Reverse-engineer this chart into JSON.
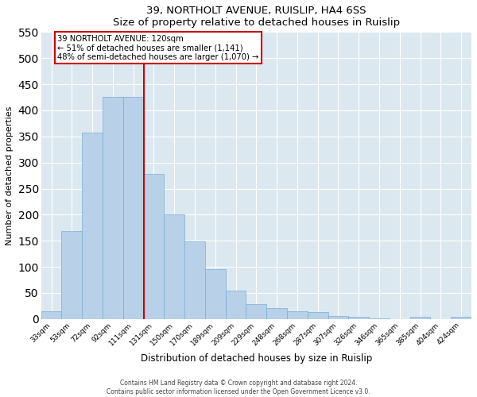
{
  "title": "39, NORTHOLT AVENUE, RUISLIP, HA4 6SS",
  "subtitle": "Size of property relative to detached houses in Ruislip",
  "xlabel": "Distribution of detached houses by size in Ruislip",
  "ylabel": "Number of detached properties",
  "categories": [
    "33sqm",
    "53sqm",
    "72sqm",
    "92sqm",
    "111sqm",
    "131sqm",
    "150sqm",
    "170sqm",
    "189sqm",
    "209sqm",
    "229sqm",
    "248sqm",
    "268sqm",
    "287sqm",
    "307sqm",
    "326sqm",
    "346sqm",
    "365sqm",
    "385sqm",
    "404sqm",
    "424sqm"
  ],
  "values": [
    15,
    168,
    357,
    425,
    425,
    278,
    200,
    149,
    96,
    55,
    28,
    21,
    15,
    14,
    6,
    5,
    1,
    0,
    5,
    0,
    5
  ],
  "bar_color": "#b8d0e8",
  "bar_edge_color": "#7aafd4",
  "vline_color": "#cc0000",
  "annotation_text": "39 NORTHOLT AVENUE: 120sqm\n← 51% of detached houses are smaller (1,141)\n48% of semi-detached houses are larger (1,070) →",
  "annotation_box_color": "#ffffff",
  "annotation_box_edge_color": "#cc0000",
  "ylim": [
    0,
    550
  ],
  "yticks": [
    0,
    50,
    100,
    150,
    200,
    250,
    300,
    350,
    400,
    450,
    500,
    550
  ],
  "background_color": "#dce8f0",
  "footer_line1": "Contains HM Land Registry data © Crown copyright and database right 2024.",
  "footer_line2": "Contains public sector information licensed under the Open Government Licence v3.0."
}
